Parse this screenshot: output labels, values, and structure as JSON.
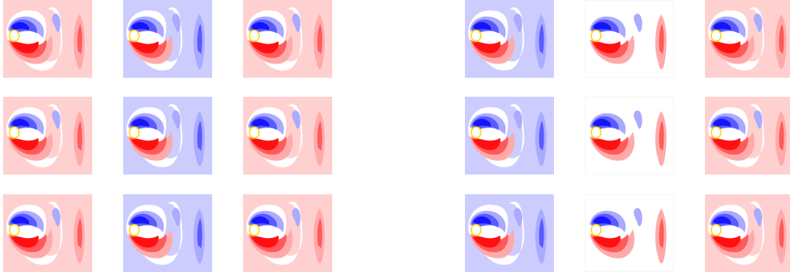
{
  "figure": {
    "colors": {
      "red_bg": "#ffd0d0",
      "blue_bg": "#ccccff",
      "white_bg": "#ffffff",
      "deep_red": "#ff1010",
      "mid_red": "#ff5a5a",
      "light_red": "#ffaaaa",
      "deep_blue": "#1414ff",
      "mid_blue": "#5a5aff",
      "light_blue": "#aaaaff",
      "yellow": "#ffd700"
    },
    "grid": [
      [
        "red",
        "blue",
        "red",
        "blue",
        "white",
        "red"
      ],
      [
        "red",
        "blue",
        "red",
        "blue",
        "white",
        "red"
      ],
      [
        "red",
        "blue",
        "red",
        "blue",
        "white",
        "red"
      ]
    ]
  }
}
